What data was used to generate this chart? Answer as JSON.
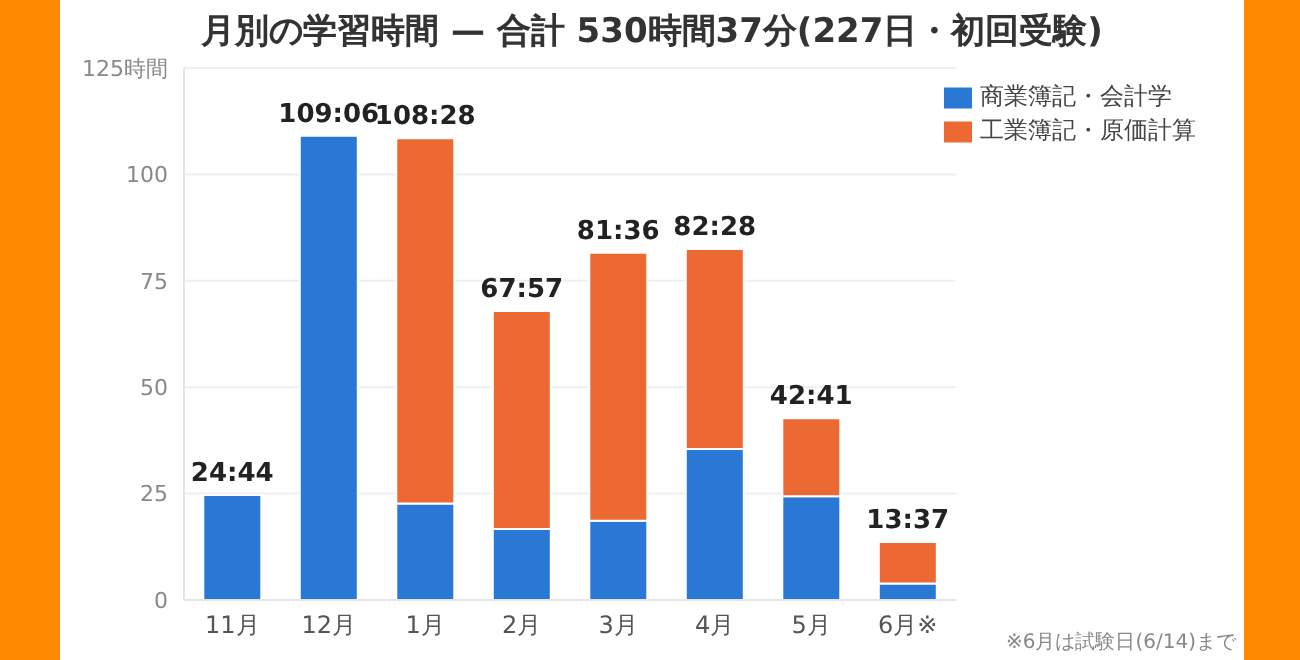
{
  "chart_data": {
    "type": "bar",
    "stacked": true,
    "title": "月別の学習時間 — 合計 530時間37分(227日・初回受験)",
    "categories": [
      "11月",
      "12月",
      "1月",
      "2月",
      "3月",
      "4月",
      "5月",
      "6月※"
    ],
    "series": [
      {
        "name": "商業簿記・会計学",
        "color": "#2a78d6",
        "values": [
          24.7,
          109.1,
          22.7,
          16.7,
          18.6,
          35.5,
          24.4,
          3.9
        ]
      },
      {
        "name": "工業簿記・原価計算",
        "color": "#ec6934",
        "values": [
          null,
          null,
          85.8,
          51.2,
          63.0,
          47.0,
          18.3,
          9.7
        ]
      }
    ],
    "ylim": [
      0,
      125
    ],
    "yticks": [
      0,
      25,
      50,
      75,
      100,
      {
        "value": 125,
        "label": "125時間"
      }
    ],
    "grid": "y",
    "legend": "top right",
    "annotations": [
      {
        "text": "24:44",
        "x": "11月",
        "y": 24.73
      },
      {
        "text": "109:06",
        "x": "12月",
        "y": 109.1
      },
      {
        "text": "108:28",
        "x": "1月",
        "y": 108.47
      },
      {
        "text": "67:57",
        "x": "2月",
        "y": 67.95
      },
      {
        "text": "81:36",
        "x": "3月",
        "y": 81.6
      },
      {
        "text": "82:28",
        "x": "4月",
        "y": 82.47
      },
      {
        "text": "42:41",
        "x": "5月",
        "y": 42.68
      },
      {
        "text": "13:37",
        "x": "6月※",
        "y": 13.62
      },
      "※6月は試験日(6/14)まで"
    ]
  }
}
